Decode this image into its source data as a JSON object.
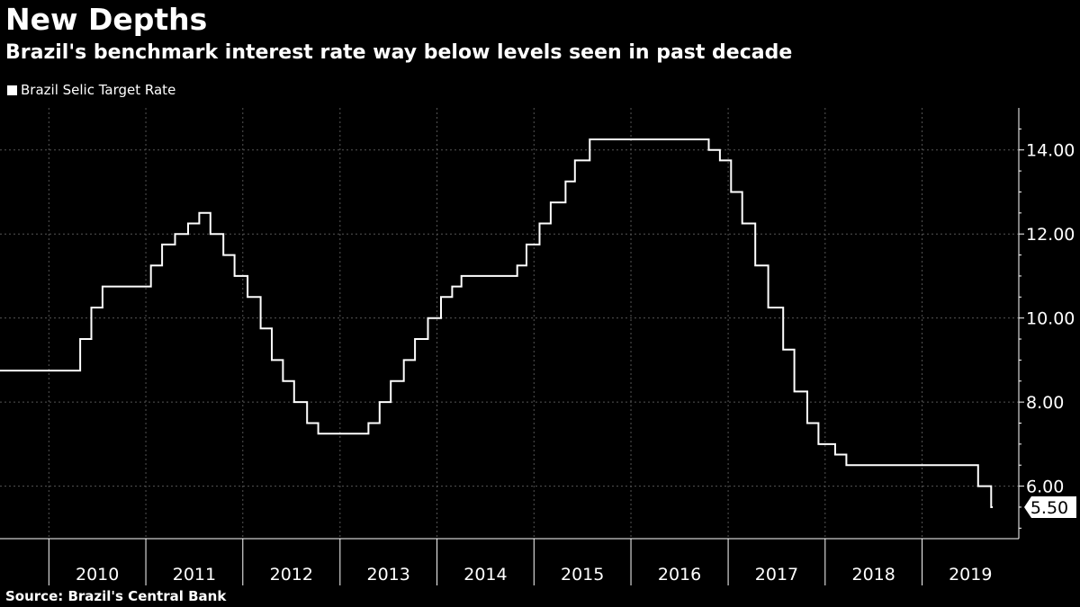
{
  "title": "New Depths",
  "subtitle": "Brazil's benchmark interest rate way below levels seen in past decade",
  "source": "Source: Brazil's Central Bank",
  "colors": {
    "background": "#000000",
    "line": "#ffffff",
    "grid": "#555555"
  },
  "chart_data": {
    "type": "line",
    "series": [
      {
        "name": "Brazil Selic Target Rate",
        "points": [
          [
            "2009-07-01",
            8.75
          ],
          [
            "2010-04-29",
            9.5
          ],
          [
            "2010-06-10",
            10.25
          ],
          [
            "2010-07-22",
            10.75
          ],
          [
            "2011-01-20",
            11.25
          ],
          [
            "2011-03-03",
            11.75
          ],
          [
            "2011-04-21",
            12.0
          ],
          [
            "2011-06-09",
            12.25
          ],
          [
            "2011-07-21",
            12.5
          ],
          [
            "2011-09-01",
            12.0
          ],
          [
            "2011-10-20",
            11.5
          ],
          [
            "2011-12-01",
            11.0
          ],
          [
            "2012-01-19",
            10.5
          ],
          [
            "2012-03-08",
            9.75
          ],
          [
            "2012-04-19",
            9.0
          ],
          [
            "2012-05-31",
            8.5
          ],
          [
            "2012-07-12",
            8.0
          ],
          [
            "2012-08-30",
            7.5
          ],
          [
            "2012-10-11",
            7.25
          ],
          [
            "2013-04-18",
            7.5
          ],
          [
            "2013-05-30",
            8.0
          ],
          [
            "2013-07-11",
            8.5
          ],
          [
            "2013-08-29",
            9.0
          ],
          [
            "2013-10-10",
            9.5
          ],
          [
            "2013-11-28",
            10.0
          ],
          [
            "2014-01-16",
            10.5
          ],
          [
            "2014-02-27",
            10.75
          ],
          [
            "2014-04-03",
            11.0
          ],
          [
            "2014-10-30",
            11.25
          ],
          [
            "2014-12-04",
            11.75
          ],
          [
            "2015-01-22",
            12.25
          ],
          [
            "2015-03-05",
            12.75
          ],
          [
            "2015-04-30",
            13.25
          ],
          [
            "2015-06-04",
            13.75
          ],
          [
            "2015-07-30",
            14.25
          ],
          [
            "2016-10-20",
            14.0
          ],
          [
            "2016-12-01",
            13.75
          ],
          [
            "2017-01-12",
            13.0
          ],
          [
            "2017-02-23",
            12.25
          ],
          [
            "2017-04-13",
            11.25
          ],
          [
            "2017-06-01",
            10.25
          ],
          [
            "2017-07-27",
            9.25
          ],
          [
            "2017-09-07",
            8.25
          ],
          [
            "2017-10-26",
            7.5
          ],
          [
            "2017-12-07",
            7.0
          ],
          [
            "2018-02-08",
            6.75
          ],
          [
            "2018-03-22",
            6.5
          ],
          [
            "2019-07-31",
            6.0
          ],
          [
            "2019-09-18",
            5.5
          ],
          [
            "2019-09-24",
            5.5
          ]
        ]
      }
    ],
    "last_value_label": "5.50",
    "x_ticks": [
      "2010",
      "2011",
      "2012",
      "2013",
      "2014",
      "2015",
      "2016",
      "2017",
      "2018",
      "2019"
    ],
    "y_ticks": [
      "14.00",
      "12.00",
      "10.00",
      "8.00",
      "6.00"
    ],
    "ylim": [
      4.75,
      15.0
    ],
    "xlim": [
      "2009-07-01",
      "2019-12-31"
    ],
    "y_axis_side": "right",
    "grid": true,
    "legend_position": "top-left"
  }
}
